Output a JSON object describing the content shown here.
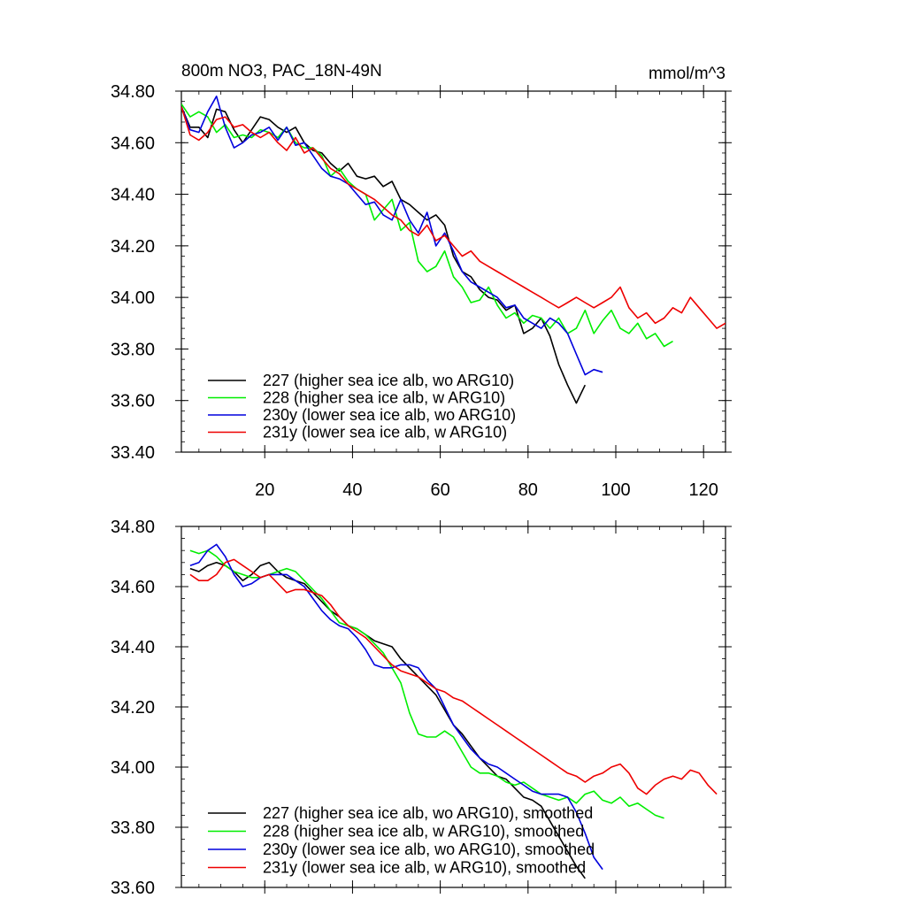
{
  "chart_data": [
    {
      "type": "line",
      "title": "800m NO3, PAC_18N-49N",
      "units": "mmol/m^3",
      "xlabel": "",
      "ylabel": "",
      "xlim": [
        1,
        125
      ],
      "ylim": [
        33.4,
        34.8
      ],
      "xticks": [
        20,
        40,
        60,
        80,
        100,
        120
      ],
      "xtick_labels": [
        "20",
        "40",
        "60",
        "80",
        "100",
        "120"
      ],
      "yticks": [
        33.4,
        33.6,
        33.8,
        34.0,
        34.2,
        34.4,
        34.6,
        34.8
      ],
      "ytick_labels": [
        "33.40",
        "33.60",
        "33.80",
        "34.00",
        "34.20",
        "34.40",
        "34.60",
        "34.80"
      ],
      "legend_position": "bottom-left",
      "series": [
        {
          "name": "227 (higher sea ice alb, wo ARG10)",
          "color": "#000000",
          "x": [
            1,
            3,
            5,
            7,
            9,
            11,
            13,
            15,
            17,
            19,
            21,
            23,
            25,
            27,
            29,
            31,
            33,
            35,
            37,
            39,
            41,
            43,
            45,
            47,
            49,
            51,
            53,
            55,
            57,
            59,
            61,
            63,
            65,
            67,
            69,
            71,
            73,
            75,
            77,
            79,
            81,
            83,
            85,
            87,
            89,
            91,
            93
          ],
          "values": [
            34.74,
            34.66,
            34.66,
            34.62,
            34.73,
            34.72,
            34.65,
            34.6,
            34.65,
            34.7,
            34.69,
            34.66,
            34.64,
            34.66,
            34.6,
            34.57,
            34.56,
            34.52,
            34.49,
            34.52,
            34.47,
            34.46,
            34.47,
            34.43,
            34.45,
            34.38,
            34.36,
            34.33,
            34.3,
            34.32,
            34.28,
            34.16,
            34.1,
            34.08,
            34.03,
            34.0,
            33.99,
            33.95,
            33.97,
            33.86,
            33.88,
            33.92,
            33.85,
            33.74,
            33.66,
            33.59,
            33.66
          ]
        },
        {
          "name": "228 (higher sea ice alb, w ARG10)",
          "color": "#00ee00",
          "x": [
            1,
            3,
            5,
            7,
            9,
            11,
            13,
            15,
            17,
            19,
            21,
            23,
            25,
            27,
            29,
            31,
            33,
            35,
            37,
            39,
            41,
            43,
            45,
            47,
            49,
            51,
            53,
            55,
            57,
            59,
            61,
            63,
            65,
            67,
            69,
            71,
            73,
            75,
            77,
            79,
            81,
            83,
            85,
            87,
            89,
            91,
            93,
            95,
            97,
            99,
            101,
            103,
            105,
            107,
            109,
            111,
            113
          ],
          "values": [
            34.75,
            34.7,
            34.72,
            34.7,
            34.64,
            34.67,
            34.62,
            34.63,
            34.62,
            34.65,
            34.64,
            34.62,
            34.66,
            34.6,
            34.58,
            34.58,
            34.55,
            34.47,
            34.5,
            34.45,
            34.42,
            34.4,
            34.3,
            34.34,
            34.38,
            34.26,
            34.29,
            34.14,
            34.1,
            34.12,
            34.18,
            34.08,
            34.04,
            33.98,
            33.99,
            34.04,
            33.97,
            33.92,
            33.94,
            33.9,
            33.93,
            33.92,
            33.88,
            33.92,
            33.86,
            33.88,
            33.95,
            33.86,
            33.91,
            33.95,
            33.88,
            33.86,
            33.9,
            33.84,
            33.86,
            33.81,
            33.83
          ]
        },
        {
          "name": "230y (lower sea ice alb, wo ARG10)",
          "color": "#0000dd",
          "x": [
            1,
            3,
            5,
            7,
            9,
            11,
            13,
            15,
            17,
            19,
            21,
            23,
            25,
            27,
            29,
            31,
            33,
            35,
            37,
            39,
            41,
            43,
            45,
            47,
            49,
            51,
            53,
            55,
            57,
            59,
            61,
            63,
            65,
            67,
            69,
            71,
            73,
            75,
            77,
            79,
            81,
            83,
            85,
            87,
            89,
            91,
            93,
            95,
            97
          ],
          "values": [
            34.74,
            34.65,
            34.64,
            34.72,
            34.78,
            34.66,
            34.58,
            34.6,
            34.63,
            34.64,
            34.66,
            34.61,
            34.66,
            34.59,
            34.6,
            34.55,
            34.5,
            34.47,
            34.46,
            34.44,
            34.4,
            34.36,
            34.37,
            34.32,
            34.3,
            34.38,
            34.3,
            34.25,
            34.33,
            34.2,
            34.25,
            34.18,
            34.1,
            34.06,
            34.04,
            34.02,
            34.0,
            33.96,
            33.97,
            33.92,
            33.9,
            33.88,
            33.92,
            33.9,
            33.86,
            33.78,
            33.7,
            33.72,
            33.71
          ]
        },
        {
          "name": "231y (lower sea ice alb, w ARG10)",
          "color": "#ee0000",
          "x": [
            1,
            3,
            5,
            7,
            9,
            11,
            13,
            15,
            17,
            19,
            21,
            23,
            25,
            27,
            29,
            31,
            33,
            35,
            37,
            39,
            41,
            43,
            45,
            47,
            49,
            51,
            53,
            55,
            57,
            59,
            61,
            63,
            65,
            67,
            69,
            71,
            73,
            75,
            77,
            79,
            81,
            83,
            85,
            87,
            89,
            91,
            93,
            95,
            97,
            99,
            101,
            103,
            105,
            107,
            109,
            111,
            113,
            115,
            117,
            119,
            121,
            123,
            125
          ],
          "values": [
            34.74,
            34.63,
            34.61,
            34.64,
            34.69,
            34.7,
            34.66,
            34.67,
            34.64,
            34.62,
            34.64,
            34.6,
            34.57,
            34.62,
            34.56,
            34.58,
            34.54,
            34.5,
            34.48,
            34.44,
            34.42,
            34.4,
            34.38,
            34.35,
            34.32,
            34.3,
            34.26,
            34.24,
            34.28,
            34.22,
            34.24,
            34.2,
            34.16,
            34.18,
            34.14,
            34.12,
            34.1,
            34.08,
            34.06,
            34.04,
            34.02,
            34.0,
            33.98,
            33.96,
            33.98,
            34.0,
            33.98,
            33.96,
            33.98,
            34.0,
            34.04,
            33.96,
            33.92,
            33.94,
            33.9,
            33.92,
            33.96,
            33.94,
            34.0,
            33.96,
            33.92,
            33.88,
            33.9
          ]
        }
      ]
    },
    {
      "type": "line",
      "title": "",
      "xlabel": "",
      "ylabel": "",
      "xlim": [
        1,
        125
      ],
      "ylim": [
        33.6,
        34.8
      ],
      "xticks": [
        20,
        40,
        60,
        80,
        100,
        120
      ],
      "xtick_labels": [
        "",
        "",
        "",
        "",
        "",
        ""
      ],
      "yticks": [
        33.6,
        33.8,
        34.0,
        34.2,
        34.4,
        34.6,
        34.8
      ],
      "ytick_labels": [
        "33.60",
        "33.80",
        "34.00",
        "34.20",
        "34.40",
        "34.60",
        "34.80"
      ],
      "legend_position": "bottom-left",
      "series": [
        {
          "name": "227 (higher sea ice alb, wo ARG10), smoothed",
          "color": "#000000",
          "x": [
            3,
            5,
            7,
            9,
            11,
            13,
            15,
            17,
            19,
            21,
            23,
            25,
            27,
            29,
            31,
            33,
            35,
            37,
            39,
            41,
            43,
            45,
            47,
            49,
            51,
            53,
            55,
            57,
            59,
            61,
            63,
            65,
            67,
            69,
            71,
            73,
            75,
            77,
            79,
            81,
            83,
            85,
            87,
            89,
            91,
            93
          ],
          "values": [
            34.66,
            34.65,
            34.67,
            34.68,
            34.67,
            34.65,
            34.62,
            34.64,
            34.67,
            34.68,
            34.65,
            34.63,
            34.62,
            34.61,
            34.58,
            34.55,
            34.52,
            34.5,
            34.47,
            34.46,
            34.44,
            34.42,
            34.41,
            34.4,
            34.36,
            34.33,
            34.3,
            34.27,
            34.24,
            34.19,
            34.14,
            34.11,
            34.07,
            34.03,
            34.0,
            33.97,
            33.96,
            33.93,
            33.9,
            33.89,
            33.87,
            33.82,
            33.77,
            33.72,
            33.67,
            33.63
          ]
        },
        {
          "name": "228 (higher sea ice alb, w ARG10), smoothed",
          "color": "#00ee00",
          "x": [
            3,
            5,
            7,
            9,
            11,
            13,
            15,
            17,
            19,
            21,
            23,
            25,
            27,
            29,
            31,
            33,
            35,
            37,
            39,
            41,
            43,
            45,
            47,
            49,
            51,
            53,
            55,
            57,
            59,
            61,
            63,
            65,
            67,
            69,
            71,
            73,
            75,
            77,
            79,
            81,
            83,
            85,
            87,
            89,
            91,
            93,
            95,
            97,
            99,
            101,
            103,
            105,
            107,
            109,
            111
          ],
          "values": [
            34.72,
            34.71,
            34.72,
            34.7,
            34.67,
            34.65,
            34.64,
            34.63,
            34.63,
            34.64,
            34.65,
            34.66,
            34.65,
            34.62,
            34.59,
            34.56,
            34.52,
            34.48,
            34.47,
            34.46,
            34.44,
            34.41,
            34.38,
            34.33,
            34.28,
            34.18,
            34.11,
            34.1,
            34.1,
            34.12,
            34.1,
            34.05,
            34.0,
            33.98,
            33.98,
            33.97,
            33.95,
            33.94,
            33.95,
            33.93,
            33.91,
            33.9,
            33.89,
            33.9,
            33.88,
            33.91,
            33.92,
            33.89,
            33.88,
            33.9,
            33.87,
            33.88,
            33.86,
            33.84,
            33.83
          ]
        },
        {
          "name": "230y (lower sea ice alb, wo ARG10), smoothed",
          "color": "#0000dd",
          "x": [
            3,
            5,
            7,
            9,
            11,
            13,
            15,
            17,
            19,
            21,
            23,
            25,
            27,
            29,
            31,
            33,
            35,
            37,
            39,
            41,
            43,
            45,
            47,
            49,
            51,
            53,
            55,
            57,
            59,
            61,
            63,
            65,
            67,
            69,
            71,
            73,
            75,
            77,
            79,
            81,
            83,
            85,
            87,
            89,
            91,
            93,
            95,
            97
          ],
          "values": [
            34.67,
            34.68,
            34.72,
            34.74,
            34.7,
            34.64,
            34.6,
            34.61,
            34.63,
            34.64,
            34.64,
            34.64,
            34.62,
            34.6,
            34.56,
            34.52,
            34.49,
            34.47,
            34.46,
            34.43,
            34.39,
            34.34,
            34.33,
            34.33,
            34.34,
            34.34,
            34.33,
            34.29,
            34.26,
            34.2,
            34.14,
            34.1,
            34.06,
            34.03,
            34.01,
            34.0,
            33.98,
            33.96,
            33.94,
            33.92,
            33.91,
            33.91,
            33.91,
            33.9,
            33.85,
            33.78,
            33.7,
            33.66
          ]
        },
        {
          "name": "231y (lower sea ice alb, w ARG10), smoothed",
          "color": "#ee0000",
          "x": [
            3,
            5,
            7,
            9,
            11,
            13,
            15,
            17,
            19,
            21,
            23,
            25,
            27,
            29,
            31,
            33,
            35,
            37,
            39,
            41,
            43,
            45,
            47,
            49,
            51,
            53,
            55,
            57,
            59,
            61,
            63,
            65,
            67,
            69,
            71,
            73,
            75,
            77,
            79,
            81,
            83,
            85,
            87,
            89,
            91,
            93,
            95,
            97,
            99,
            101,
            103,
            105,
            107,
            109,
            111,
            113,
            115,
            117,
            119,
            121,
            123
          ],
          "values": [
            34.64,
            34.62,
            34.62,
            34.64,
            34.68,
            34.69,
            34.67,
            34.65,
            34.63,
            34.64,
            34.61,
            34.58,
            34.59,
            34.59,
            34.58,
            34.57,
            34.54,
            34.5,
            34.47,
            34.45,
            34.43,
            34.4,
            34.37,
            34.34,
            34.32,
            34.31,
            34.3,
            34.28,
            34.26,
            34.25,
            34.23,
            34.22,
            34.2,
            34.18,
            34.16,
            34.14,
            34.12,
            34.1,
            34.08,
            34.06,
            34.04,
            34.02,
            34.0,
            33.98,
            33.97,
            33.95,
            33.97,
            33.98,
            34.0,
            34.01,
            33.98,
            33.93,
            33.91,
            33.94,
            33.96,
            33.97,
            33.96,
            33.99,
            33.98,
            33.94,
            33.91
          ]
        }
      ]
    }
  ]
}
